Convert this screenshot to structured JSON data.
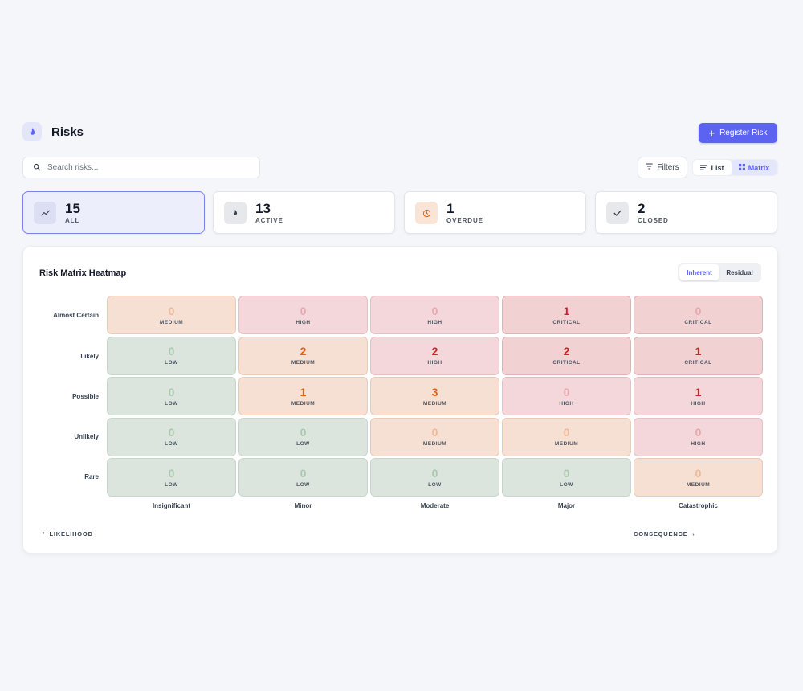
{
  "header": {
    "title": "Risks",
    "icon": "flame-icon",
    "register_label": "Register Risk"
  },
  "toolbar": {
    "search_placeholder": "Search risks...",
    "filters_label": "Filters",
    "view_list": "List",
    "view_matrix": "Matrix",
    "active_view": "Matrix"
  },
  "stats": [
    {
      "value": "15",
      "label": "ALL",
      "icon": "trend-icon",
      "selected": true
    },
    {
      "value": "13",
      "label": "ACTIVE",
      "icon": "flame-icon"
    },
    {
      "value": "1",
      "label": "OVERDUE",
      "icon": "clock-icon"
    },
    {
      "value": "2",
      "label": "CLOSED",
      "icon": "check-icon"
    }
  ],
  "matrix": {
    "title": "Risk Matrix Heatmap",
    "mode_inherent": "Inherent",
    "mode_residual": "Residual",
    "active_mode": "Inherent",
    "likelihood_axis": "LIKELIHOOD",
    "consequence_axis": "CONSEQUENCE",
    "rows": [
      {
        "label": "Almost Certain",
        "cells": [
          {
            "count": "0",
            "level": "MEDIUM"
          },
          {
            "count": "0",
            "level": "HIGH"
          },
          {
            "count": "0",
            "level": "HIGH"
          },
          {
            "count": "1",
            "level": "CRITICAL"
          },
          {
            "count": "0",
            "level": "CRITICAL"
          }
        ]
      },
      {
        "label": "Likely",
        "cells": [
          {
            "count": "0",
            "level": "LOW"
          },
          {
            "count": "2",
            "level": "MEDIUM"
          },
          {
            "count": "2",
            "level": "HIGH"
          },
          {
            "count": "2",
            "level": "CRITICAL"
          },
          {
            "count": "1",
            "level": "CRITICAL"
          }
        ]
      },
      {
        "label": "Possible",
        "cells": [
          {
            "count": "0",
            "level": "LOW"
          },
          {
            "count": "1",
            "level": "MEDIUM"
          },
          {
            "count": "3",
            "level": "MEDIUM"
          },
          {
            "count": "0",
            "level": "HIGH"
          },
          {
            "count": "1",
            "level": "HIGH"
          }
        ]
      },
      {
        "label": "Unlikely",
        "cells": [
          {
            "count": "0",
            "level": "LOW"
          },
          {
            "count": "0",
            "level": "LOW"
          },
          {
            "count": "0",
            "level": "MEDIUM"
          },
          {
            "count": "0",
            "level": "MEDIUM"
          },
          {
            "count": "0",
            "level": "HIGH"
          }
        ]
      },
      {
        "label": "Rare",
        "cells": [
          {
            "count": "0",
            "level": "LOW"
          },
          {
            "count": "0",
            "level": "LOW"
          },
          {
            "count": "0",
            "level": "LOW"
          },
          {
            "count": "0",
            "level": "LOW"
          },
          {
            "count": "0",
            "level": "MEDIUM"
          }
        ]
      }
    ],
    "columns": [
      "Insignificant",
      "Minor",
      "Moderate",
      "Major",
      "Catastrophic"
    ]
  },
  "colors": {
    "accent": "#5b63f0",
    "low_bg": "#dbe5de",
    "medium_bg": "#f6e0d3",
    "high_bg": "#f3d7da",
    "critical_bg": "#f2d1d3"
  }
}
